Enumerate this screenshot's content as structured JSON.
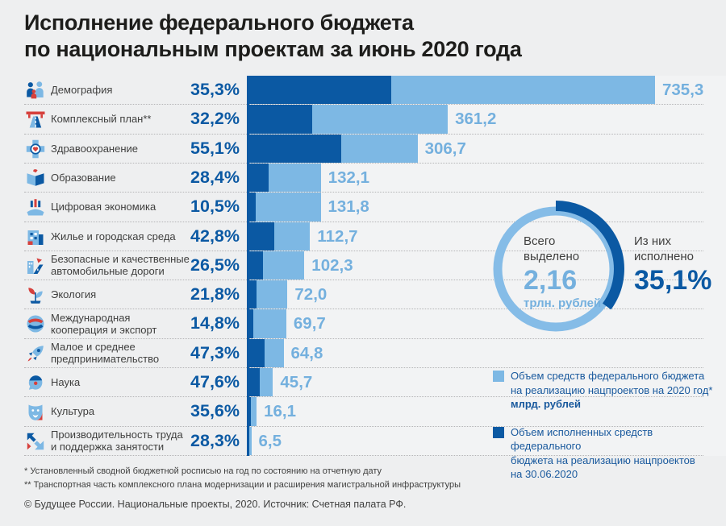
{
  "title": {
    "line1": "Исполнение федерального бюджета",
    "line2": "по национальным проектам за июнь 2020 года"
  },
  "chart_data": {
    "type": "bar",
    "orientation": "horizontal",
    "value_unit": "млрд. рублей",
    "max_value": 735.3,
    "series": [
      {
        "name": "Объем средств федерального бюджета на реализацию нацпроектов на 2020 год, млрд. рублей",
        "color": "#7db8e4"
      },
      {
        "name": "Объем исполненных средств федерального бюджета на реализацию нацпроектов на 30.06.2020",
        "color": "#0b59a3"
      }
    ],
    "rows": [
      {
        "icon": "demography-icon",
        "label": "Демография",
        "percent_label": "35,3%",
        "percent": 35.3,
        "allocated": 735.3,
        "allocated_label": "735,3"
      },
      {
        "icon": "infrastructure-plan-icon",
        "label": "Комплексный план**",
        "percent_label": "32,2%",
        "percent": 32.2,
        "allocated": 361.2,
        "allocated_label": "361,2"
      },
      {
        "icon": "healthcare-icon",
        "label": "Здравоохранение",
        "percent_label": "55,1%",
        "percent": 55.1,
        "allocated": 306.7,
        "allocated_label": "306,7"
      },
      {
        "icon": "education-icon",
        "label": "Образование",
        "percent_label": "28,4%",
        "percent": 28.4,
        "allocated": 132.1,
        "allocated_label": "132,1"
      },
      {
        "icon": "digital-economy-icon",
        "label": "Цифровая экономика",
        "percent_label": "10,5%",
        "percent": 10.5,
        "allocated": 131.8,
        "allocated_label": "131,8"
      },
      {
        "icon": "housing-icon",
        "label": "Жилье и городская среда",
        "percent_label": "42,8%",
        "percent": 42.8,
        "allocated": 112.7,
        "allocated_label": "112,7"
      },
      {
        "icon": "safe-roads-icon",
        "label": "Безопасные и качественные\nавтомобильные дороги",
        "percent_label": "26,5%",
        "percent": 26.5,
        "allocated": 102.3,
        "allocated_label": "102,3"
      },
      {
        "icon": "ecology-icon",
        "label": "Экология",
        "percent_label": "21,8%",
        "percent": 21.8,
        "allocated": 72.0,
        "allocated_label": "72,0"
      },
      {
        "icon": "international-cooperation-icon",
        "label": "Международная\nкооперация и экспорт",
        "percent_label": "14,8%",
        "percent": 14.8,
        "allocated": 69.7,
        "allocated_label": "69,7"
      },
      {
        "icon": "small-business-icon",
        "label": "Малое и среднее\nпредпринимательство",
        "percent_label": "47,3%",
        "percent": 47.3,
        "allocated": 64.8,
        "allocated_label": "64,8"
      },
      {
        "icon": "science-icon",
        "label": "Наука",
        "percent_label": "47,6%",
        "percent": 47.6,
        "allocated": 45.7,
        "allocated_label": "45,7"
      },
      {
        "icon": "culture-icon",
        "label": "Культура",
        "percent_label": "35,6%",
        "percent": 35.6,
        "allocated": 16.1,
        "allocated_label": "16,1"
      },
      {
        "icon": "labor-productivity-icon",
        "label": "Производительность труда\nи поддержка занятости",
        "percent_label": "28,3%",
        "percent": 28.3,
        "allocated": 6.5,
        "allocated_label": "6,5"
      }
    ],
    "donut": {
      "total_label_line1": "Всего",
      "total_label_line2": "выделено",
      "total_value": "2,16",
      "total_unit": "трлн. рублей",
      "executed_label_line1": "Из них",
      "executed_label_line2": "исполнено",
      "executed_percent_label": "35,1%",
      "executed_percent_value": 35.1
    }
  },
  "donut": {
    "total_label_line1": "Всего",
    "total_label_line2": "выделено",
    "total_value": "2,16",
    "total_unit": "трлн. рублей",
    "executed_label_line1": "Из них",
    "executed_label_line2": "исполнено",
    "executed_percent_label": "35,1%",
    "executed_percent_value": 35.1
  },
  "legend": [
    {
      "color": "#7db8e4",
      "lines": [
        "Объем средств федерального бюджета",
        "на реализацию нацпроектов на 2020 год*"
      ],
      "bold_line": "млрд. рублей"
    },
    {
      "color": "#0b59a3",
      "lines": [
        "Объем исполненных средств федерального",
        "бюджета на реализацию нацпроектов",
        "на 30.06.2020"
      ]
    }
  ],
  "footnotes": [
    "* Установленный сводной бюджетной росписью на год по состоянию на отчетную дату",
    "** Транспортная часть комплексного плана модернизации и расширения магистральной инфраструктуры"
  ],
  "copyright": "© Будущее России. Национальные проекты, 2020. Источник: Счетная палата РФ.",
  "colors": {
    "dark_blue": "#0b59a3",
    "light_blue": "#7db8e4",
    "ring_light": "#85bce7",
    "value_text": "#74b0de",
    "red": "#d6403c",
    "background": "#eeeff0",
    "text_dark": "#3f3f3e"
  }
}
